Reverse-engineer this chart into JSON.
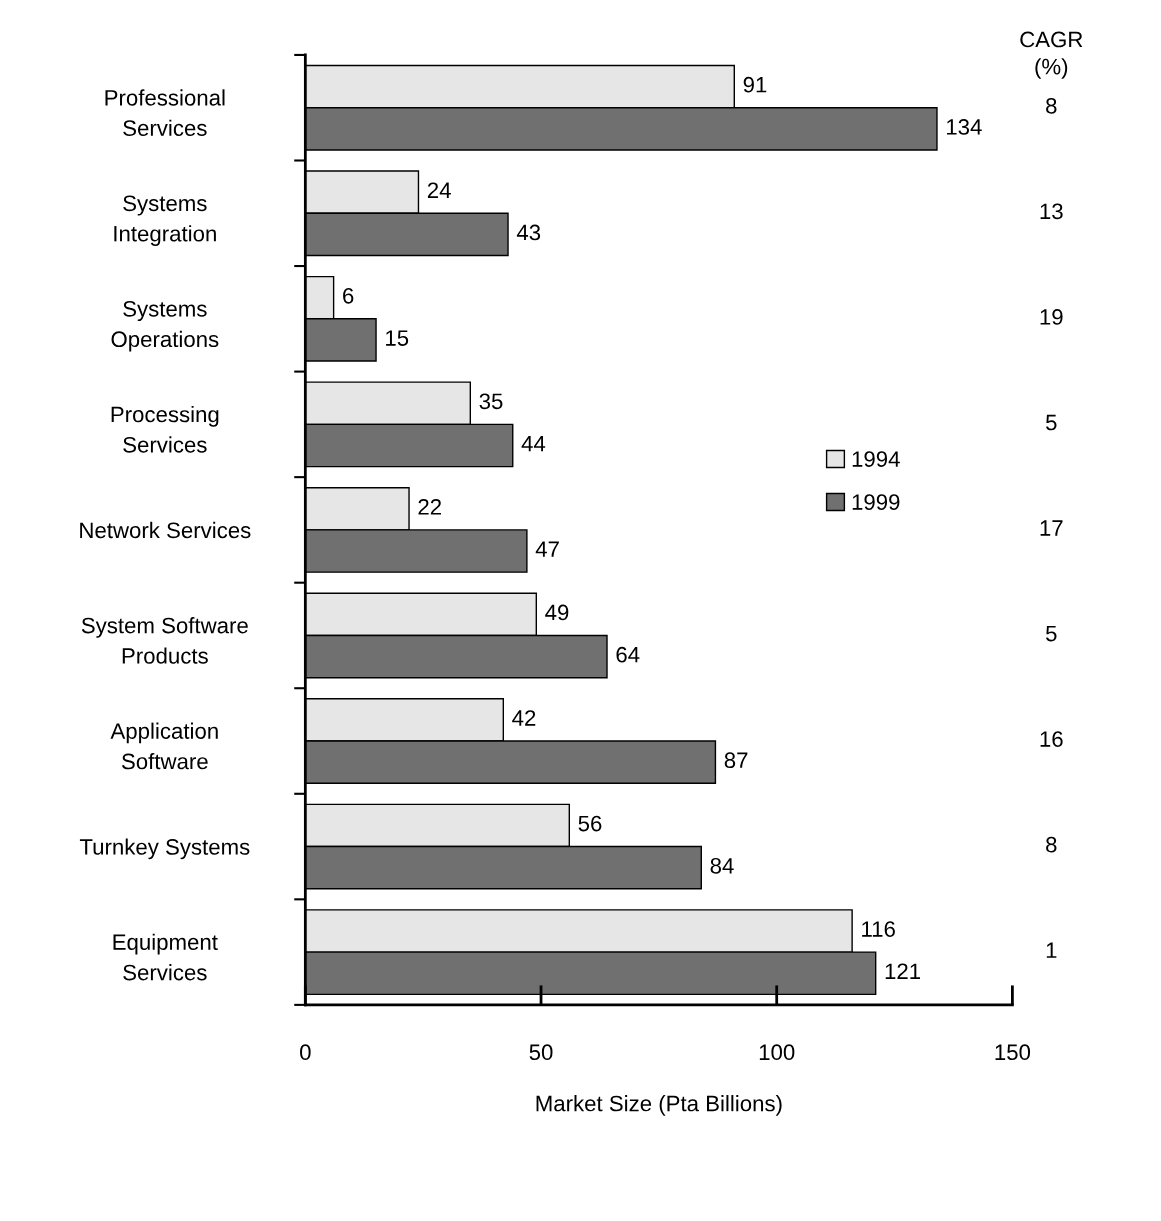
{
  "chart_data": {
    "type": "bar",
    "orientation": "horizontal",
    "xlabel": "Market Size (Pta Billions)",
    "categories": [
      "Professional\nServices",
      "Systems\nIntegration",
      "Systems\nOperations",
      "Processing\nServices",
      "Network Services",
      "System Software\nProducts",
      "Application\nSoftware",
      "Turnkey Systems",
      "Equipment\nServices"
    ],
    "series": [
      {
        "name": "1994",
        "color": "#e6e6e6",
        "values": [
          91,
          24,
          6,
          35,
          22,
          49,
          42,
          56,
          116
        ]
      },
      {
        "name": "1999",
        "color": "#707070",
        "values": [
          134,
          43,
          15,
          44,
          47,
          64,
          87,
          84,
          121
        ]
      }
    ],
    "xlim": [
      0,
      150
    ],
    "xticks": [
      0,
      50,
      100,
      150
    ],
    "data_labels": true,
    "legend": "right",
    "grid": false,
    "annotations": [
      "CAGR\n(%)",
      "8",
      "13",
      "19",
      "5",
      "17",
      "5",
      "16",
      "8",
      "1"
    ]
  }
}
